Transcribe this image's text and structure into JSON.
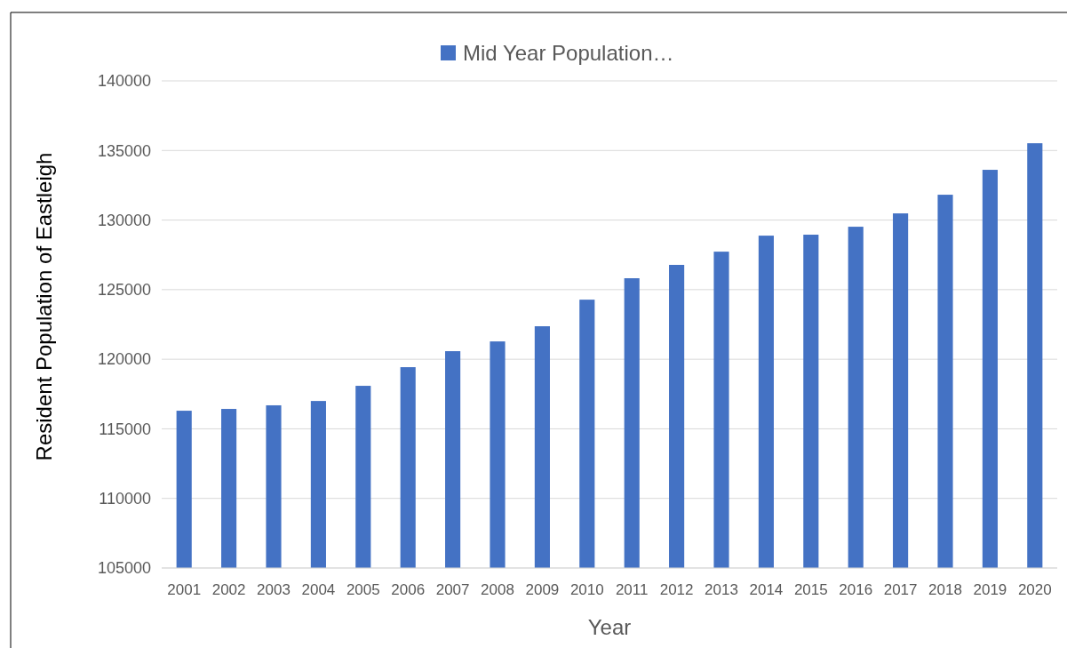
{
  "chart_data": {
    "type": "bar",
    "xlabel": "Year",
    "ylabel": "Resident Population of Eastleigh",
    "categories": [
      "2001",
      "2002",
      "2003",
      "2004",
      "2005",
      "2006",
      "2007",
      "2008",
      "2009",
      "2010",
      "2011",
      "2012",
      "2013",
      "2014",
      "2015",
      "2016",
      "2017",
      "2018",
      "2019",
      "2020"
    ],
    "series": [
      {
        "name": "Mid Year Population…",
        "color": "#4472c4",
        "values": [
          116300,
          116430,
          116690,
          117000,
          118090,
          119430,
          120580,
          121280,
          122370,
          124280,
          125820,
          126780,
          127730,
          128880,
          128950,
          129520,
          130480,
          131820,
          133610,
          135520
        ]
      }
    ],
    "ylim": [
      105000,
      140000
    ],
    "yticks": [
      105000,
      110000,
      115000,
      120000,
      125000,
      130000,
      135000,
      140000
    ],
    "grid": "y",
    "legend": "top"
  }
}
